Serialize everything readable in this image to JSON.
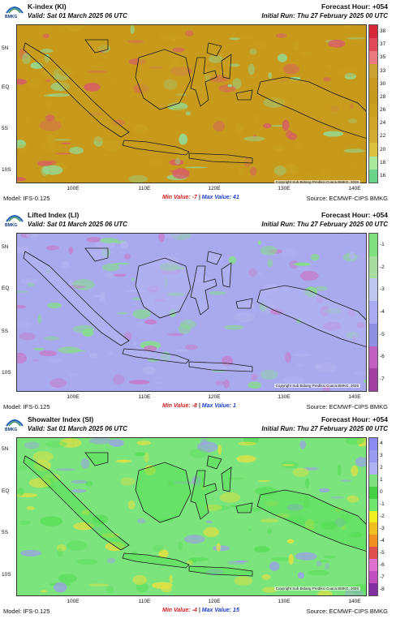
{
  "panels": [
    {
      "title": "K-index (KI)",
      "valid": "Valid: Sat 01 March 2025 06 UTC",
      "forecast_hour": "Forecast Hour: +054",
      "initial_run": "Initial Run: Thu 27 February 2025 00 UTC",
      "model": "Model: IFS-0.125",
      "min_label": "Min Value: -7",
      "max_label": "Max Value: 41",
      "separator": "|",
      "source": "Source: ECMWF-CIPS BMKG",
      "copyright": "Copyright Sub Bidang Prediksi Cuaca BMKG, 2025",
      "colorbar_ticks": [
        "38",
        "37",
        "35",
        "33",
        "30",
        "28",
        "26",
        "24",
        "22",
        "20",
        "18",
        "16"
      ],
      "colorbar_colors": [
        "#d62a3a",
        "#e04a5a",
        "#e87a80",
        "#c9a233",
        "#c99a23",
        "#c49a1f",
        "#c9a020",
        "#cfa62a",
        "#d2ac30",
        "#dcc040",
        "#a8e89a",
        "#6ad48a"
      ],
      "base_color": "#c9a020",
      "sea_color": "#c79a1c",
      "hot_color": "#d85a6a",
      "cold_color": "#8ee0a0"
    },
    {
      "title": "Lifted Index (LI)",
      "valid": "Valid: Sat 01 March 2025 06 UTC",
      "forecast_hour": "Forecast Hour: +054",
      "initial_run": "Initial Run: Thu 27 February 2025 00 UTC",
      "model": "Model: IFS-0.125",
      "min_label": "Min Value: -8",
      "max_label": "Max Value: 1",
      "separator": "|",
      "source": "Source: ECMWF-CIPS BMKG",
      "copyright": "Copyright Sub Bidang Prediksi Cuaca BMKG, 2025",
      "colorbar_ticks": [
        "-1",
        "-2",
        "-3",
        "-4",
        "-5",
        "-6",
        "-7"
      ],
      "colorbar_colors": [
        "#7ee07e",
        "#a8dca0",
        "#c0c8f0",
        "#a9aaf0",
        "#9090e0",
        "#c060c0",
        "#a040a0"
      ],
      "base_color": "#b4b4f2",
      "sea_color": "#a9aaee",
      "hot_color": "#c878c8",
      "cold_color": "#84e084"
    },
    {
      "title": "Showalter Index (SI)",
      "valid": "Valid: Sat 01 March 2025 06 UTC",
      "forecast_hour": "Forecast Hour: +054",
      "initial_run": "Initial Run: Thu 27 February 2025 00 UTC",
      "model": "Model: IFS-0.125",
      "min_label": "Min Value: -4",
      "max_label": "Max Value: 15",
      "separator": "|",
      "source": "Source: ECMWF-CIPS BMKG",
      "copyright": "Copyright Sub Bidang Prediksi Cuaca BMKG, 2025",
      "colorbar_ticks": [
        "4",
        "3",
        "2",
        "1",
        "0",
        "-1",
        "-2",
        "-3",
        "-4",
        "-5",
        "-6",
        "-7",
        "-8"
      ],
      "colorbar_colors": [
        "#8a8af0",
        "#9a9af2",
        "#b0b0f4",
        "#7ee07e",
        "#44d044",
        "#6ee66e",
        "#f0f020",
        "#f0c020",
        "#f09020",
        "#e05050",
        "#e070d0",
        "#c050c0",
        "#8030a0"
      ],
      "base_color": "#58de58",
      "sea_color": "#7ce47c",
      "hot_color": "#e8e040",
      "cold_color": "#9c9cf0"
    }
  ],
  "axes": {
    "x_ticks": [
      "100E",
      "110E",
      "120E",
      "130E",
      "140E"
    ],
    "y_ticks": [
      "5N",
      "EQ",
      "5S",
      "10S"
    ]
  }
}
